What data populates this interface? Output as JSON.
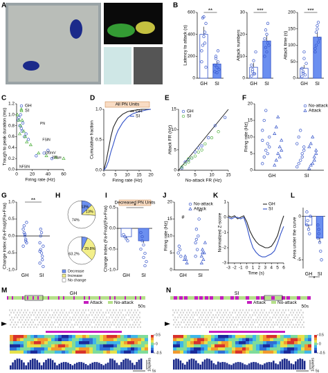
{
  "panel_labels": [
    "A",
    "B",
    "C",
    "D",
    "E",
    "F",
    "G",
    "H",
    "I",
    "J",
    "K",
    "L",
    "M",
    "N"
  ],
  "chart_data": [
    {
      "type": "bar",
      "ylabel": "Latency to attack (s)",
      "categories": [
        "GH",
        "SI"
      ],
      "values": [
        400,
        130
      ],
      "errors": [
        70,
        30
      ],
      "colors": [
        "#ffffff",
        "#6b8ff0"
      ],
      "stroke": "#3050c8",
      "ylim": [
        0,
        600
      ],
      "yticks": [
        0,
        200,
        400,
        600
      ],
      "annotation": "**",
      "points": [
        [
          150,
          300,
          560,
          420,
          500,
          250,
          550,
          380,
          320,
          100
        ],
        [
          60,
          180,
          100,
          250,
          80,
          120,
          200,
          50,
          150
        ]
      ]
    },
    {
      "type": "bar",
      "ylabel": "Attack numbers",
      "categories": [
        "GH",
        "SI"
      ],
      "values": [
        5,
        17
      ],
      "errors": [
        2,
        2.5
      ],
      "colors": [
        "#ffffff",
        "#6b8ff0"
      ],
      "stroke": "#3050c8",
      "ylim": [
        0,
        30
      ],
      "yticks": [
        0,
        10,
        20,
        30
      ],
      "annotation": "***",
      "points": [
        [
          1,
          3,
          8,
          2,
          12,
          6,
          4,
          2
        ],
        [
          10,
          14,
          20,
          25,
          15,
          18,
          22,
          12,
          16
        ]
      ]
    },
    {
      "type": "bar",
      "ylabel": "Attack time (s)",
      "categories": [
        "GH",
        "SI"
      ],
      "values": [
        30,
        125
      ],
      "errors": [
        10,
        15
      ],
      "colors": [
        "#ffffff",
        "#6b8ff0"
      ],
      "stroke": "#3050c8",
      "ylim": [
        0,
        200
      ],
      "yticks": [
        0,
        50,
        100,
        150,
        200
      ],
      "annotation": "***",
      "points": [
        [
          5,
          20,
          60,
          10,
          45,
          30,
          15,
          80
        ],
        [
          80,
          100,
          150,
          170,
          120,
          90,
          140,
          160,
          110
        ]
      ]
    },
    {
      "type": "scatter",
      "xlabel": "Firing rate (Hz)",
      "ylabel": "Trough to peak duration (ms)",
      "xlim": [
        0,
        60
      ],
      "xticks": [
        0,
        20,
        40,
        60
      ],
      "ylim": [
        0,
        1.2
      ],
      "yticks": [
        {
          "value": 0,
          "label": "0.0"
        },
        {
          "value": 0.2,
          "label": "0.2"
        },
        {
          "value": 0.4,
          "label": "0.4"
        },
        {
          "value": 0.6,
          "label": "0.6"
        },
        {
          "value": 0.8,
          "label": "0.8"
        },
        {
          "value": 1,
          "label": "1.0"
        },
        {
          "value": 1.2,
          "label": "1.2"
        }
      ],
      "legend": "top-left",
      "annotations": [
        "PN",
        "FSIN",
        "NFSIN",
        "100mV",
        "200μs"
      ],
      "series": [
        {
          "name": "GH",
          "color": "#3050c8",
          "marker": "circle",
          "x": [
            2,
            4,
            5,
            7,
            8,
            10,
            3,
            6,
            12,
            15,
            25,
            35,
            45,
            40
          ],
          "y": [
            0.9,
            0.8,
            1.0,
            0.7,
            0.85,
            0.6,
            0.95,
            0.75,
            0.65,
            0.55,
            0.25,
            0.3,
            0.2,
            0.35
          ]
        },
        {
          "name": "SI",
          "color": "#4caf3a",
          "marker": "triangle",
          "x": [
            1,
            3,
            5,
            6,
            9,
            11,
            4,
            7,
            13,
            18,
            28,
            38,
            50,
            60
          ],
          "y": [
            1.0,
            0.9,
            0.8,
            1.1,
            0.7,
            0.6,
            0.65,
            0.9,
            0.5,
            0.45,
            0.3,
            0.25,
            0.22,
            0.2
          ]
        }
      ]
    },
    {
      "type": "line",
      "title": "All PN Units",
      "xlabel": "Firing rate (Hz)",
      "ylabel": "Cumulative fraction",
      "xlim": [
        0,
        20
      ],
      "xticks": [
        0,
        5,
        10,
        15,
        20
      ],
      "ylim": [
        0,
        1
      ],
      "yticks": [
        {
          "value": 0,
          "label": "0.0"
        },
        {
          "value": 0.5,
          "label": "0.5"
        },
        {
          "value": 1,
          "label": "1.0"
        }
      ],
      "legend": "top-right",
      "x": [
        0,
        1,
        2,
        3,
        4,
        5,
        6,
        8,
        10,
        12,
        14,
        16,
        18,
        20
      ],
      "series": [
        {
          "name": "GH",
          "color": "#222222",
          "values": [
            0,
            0.15,
            0.35,
            0.55,
            0.7,
            0.78,
            0.85,
            0.92,
            0.96,
            0.98,
            0.99,
            1,
            1,
            1
          ]
        },
        {
          "name": "SI",
          "color": "#3050c8",
          "values": [
            0,
            0.05,
            0.15,
            0.3,
            0.42,
            0.55,
            0.65,
            0.78,
            0.87,
            0.92,
            0.95,
            0.97,
            0.99,
            1
          ]
        }
      ]
    },
    {
      "type": "scatter",
      "xlabel": "No-attack FR (Hz)",
      "ylabel": "Attack FR (Hz)",
      "xlim": [
        0,
        15
      ],
      "xticks": [
        0,
        5,
        10,
        15
      ],
      "ylim": [
        0,
        15
      ],
      "yticks": [
        0,
        5,
        10,
        15
      ],
      "diagonal": true,
      "legend": "top-left",
      "series": [
        {
          "name": "GH",
          "color": "#3050c8",
          "marker": "circle",
          "x": [
            1,
            2,
            3,
            5,
            7,
            9,
            11,
            14,
            4,
            6
          ],
          "y": [
            0.5,
            2,
            2.5,
            4.5,
            6,
            8,
            11,
            13,
            3,
            5.5
          ]
        },
        {
          "name": "SI",
          "color": "#4caf3a",
          "marker": "circle",
          "x": [
            1,
            2,
            3,
            4,
            6,
            8,
            10,
            12,
            5,
            7,
            3
          ],
          "y": [
            0.8,
            1.5,
            2,
            3,
            4.5,
            6.5,
            8,
            9.5,
            3.5,
            5,
            2.8
          ]
        }
      ]
    },
    {
      "type": "dot",
      "ylabel": "Firing rate (Hz)",
      "categories": [
        "GH",
        "SI"
      ],
      "ylim": [
        0,
        20
      ],
      "yticks": [
        0,
        5,
        10,
        15,
        20
      ],
      "legend": "top-right",
      "series": [
        {
          "name": "No-attack",
          "color": "#3050c8",
          "marker": "circle",
          "values": [
            [
              2,
              4,
              6,
              8,
              10,
              12,
              15,
              18,
              5,
              7,
              9
            ],
            [
              1,
              2,
              3,
              5,
              6,
              8,
              10,
              12,
              4,
              7
            ]
          ]
        },
        {
          "name": "Attack",
          "color": "#3050c8",
          "marker": "triangle",
          "values": [
            [
              1.5,
              3,
              5,
              7,
              9,
              11,
              13,
              16,
              4,
              6
            ],
            [
              0.5,
              1.5,
              2,
              4,
              5,
              7,
              8,
              10,
              3,
              6
            ]
          ]
        }
      ]
    },
    {
      "type": "dot",
      "ylabel": "Change index (Fa-Fna)/(Fa+Fna)",
      "categories": [
        "GH",
        "SI"
      ],
      "ylim": [
        -1,
        1
      ],
      "yticks": [
        {
          "value": -1,
          "label": "-1.0"
        },
        {
          "value": -0.5,
          "label": "-0.5"
        },
        {
          "value": 0,
          "label": "0.0"
        },
        {
          "value": 0.5,
          "label": "0.5"
        },
        {
          "value": 1,
          "label": "1.0"
        }
      ],
      "annotation": "**",
      "series": [
        {
          "name": null,
          "color": "#3050c8",
          "marker": "circle",
          "values": [
            [
              0.2,
              0.1,
              0,
              -0.1,
              -0.2,
              -0.3,
              0.3,
              0.05,
              -0.15,
              0.4
            ],
            [
              -0.2,
              -0.4,
              -0.5,
              -0.6,
              -0.3,
              -0.8,
              0,
              0.1,
              -0.7,
              -0.9,
              -0.45,
              0.2
            ]
          ]
        }
      ]
    },
    {
      "type": "pie",
      "labels": [
        "Decrease",
        "Increase",
        "No change"
      ],
      "colors": [
        "#6b8ff0",
        "#f3ef8a",
        "#ffffff"
      ],
      "pies": [
        {
          "values": [
            13,
            13,
            74
          ],
          "value_labels": [
            "13%",
            "13%",
            "74%"
          ]
        },
        {
          "values": [
            7,
            29.8,
            63.2
          ],
          "value_labels": [
            null,
            "29.8%",
            "63.2%"
          ]
        }
      ]
    },
    {
      "type": "bar",
      "title": "Decreased PN Units",
      "ylabel": "Change index (Fa-Fna)/(Fa+Fna)",
      "categories": [
        "GH",
        "SI"
      ],
      "values": [
        -0.2,
        -0.3
      ],
      "errors": [
        0.05,
        0.05
      ],
      "colors": [
        "#ffffff",
        "#6b8ff0"
      ],
      "stroke": "#3050c8",
      "ylim": [
        -1,
        0.5
      ],
      "yticks": [
        {
          "value": -1,
          "label": "-1.0"
        },
        {
          "value": -0.5,
          "label": "-0.5"
        },
        {
          "value": 0,
          "label": "0.0"
        },
        {
          "value": 0.5,
          "label": "0.5"
        }
      ],
      "annotation": "*",
      "points": [
        [
          -0.15,
          -0.2,
          -0.25,
          -0.3
        ],
        [
          -0.1,
          -0.2,
          -0.4,
          -0.6,
          -0.8,
          -0.5,
          -0.3,
          -0.7,
          -0.9
        ]
      ]
    },
    {
      "type": "dot",
      "ylabel": "Firing rate (Hz)",
      "categories": [
        "GH",
        "SI"
      ],
      "ylim": [
        0,
        20
      ],
      "yticks": [
        0,
        5,
        10,
        15,
        20
      ],
      "legend": "top-right",
      "annotations": [
        "#",
        "**"
      ],
      "series": [
        {
          "name": "No-attack",
          "color": "#3050c8",
          "marker": "circle",
          "values": [
            [
              5,
              7,
              6,
              4
            ],
            [
              8,
              12,
              6,
              10,
              15,
              4,
              9
            ]
          ]
        },
        {
          "name": "Attack",
          "color": "#3050c8",
          "marker": "triangle",
          "values": [
            [
              3,
              4,
              3,
              2
            ],
            [
              4,
              6,
              3,
              5,
              8,
              2,
              5
            ]
          ]
        }
      ]
    },
    {
      "type": "line",
      "xlabel": "Time (s)",
      "ylabel": "Normalized Z-score",
      "xlim": [
        -3,
        6
      ],
      "xticks": [
        -3,
        -2,
        -1,
        0,
        1,
        2,
        3,
        4,
        5,
        6
      ],
      "ylim": [
        -3,
        1
      ],
      "yticks": [
        -3,
        -2,
        -1,
        0,
        1
      ],
      "legend": "top-right",
      "x": [
        -3,
        -2.5,
        -2,
        -1.5,
        -1,
        -0.5,
        0,
        0.5,
        1,
        1.5,
        2,
        2.5,
        3,
        3.5,
        4,
        4.5,
        5,
        5.5,
        6
      ],
      "series": [
        {
          "name": "GH",
          "color": "#222222",
          "values": [
            0.1,
            0,
            0.1,
            -0.1,
            0,
            0.1,
            -0.3,
            -0.9,
            -1.3,
            -1.6,
            -1.8,
            -1.9,
            -2,
            -2,
            -1.9,
            -1.6,
            -1.2,
            -0.5,
            0.1
          ]
        },
        {
          "name": "SI",
          "color": "#3050c8",
          "values": [
            0,
            -0.1,
            0,
            0,
            -0.1,
            0,
            -0.6,
            -1.4,
            -2,
            -2.3,
            -2.5,
            -2.6,
            -2.6,
            -2.5,
            -2.4,
            -2.2,
            -1.7,
            -1.1,
            -0.6
          ]
        }
      ]
    },
    {
      "type": "bar",
      "ylabel": "Area under the curve",
      "categories": [
        "GH",
        "SI"
      ],
      "values": [
        -1,
        -2.5
      ],
      "errors": [
        0.4,
        0.5
      ],
      "colors": [
        "#ffffff",
        "#6b8ff0"
      ],
      "stroke": "#3050c8",
      "ylim": [
        -6,
        1
      ],
      "yticks": [
        -5,
        0
      ],
      "annotation": "*",
      "annotation_below": true,
      "points": [
        [
          0.5,
          -0.5,
          -1.5,
          -2,
          0,
          -1
        ],
        [
          -1,
          -2,
          -3,
          -4,
          -5,
          -2.5,
          -1.5
        ]
      ]
    }
  ],
  "rasters": [
    {
      "group": "GH",
      "legend": [
        "Attack",
        "No-attack"
      ],
      "time_scale": "50s",
      "zoom_scale": "5s",
      "spike_scale": "10spikes",
      "colorbar": [
        0.5,
        0,
        -0.5
      ]
    },
    {
      "group": "SI",
      "legend": [
        "Attack",
        "No-attack"
      ],
      "time_scale": "50s",
      "zoom_scale": "5s",
      "spike_scale": "10spikes",
      "colorbar": [
        0.5,
        0,
        -0.5
      ]
    }
  ]
}
